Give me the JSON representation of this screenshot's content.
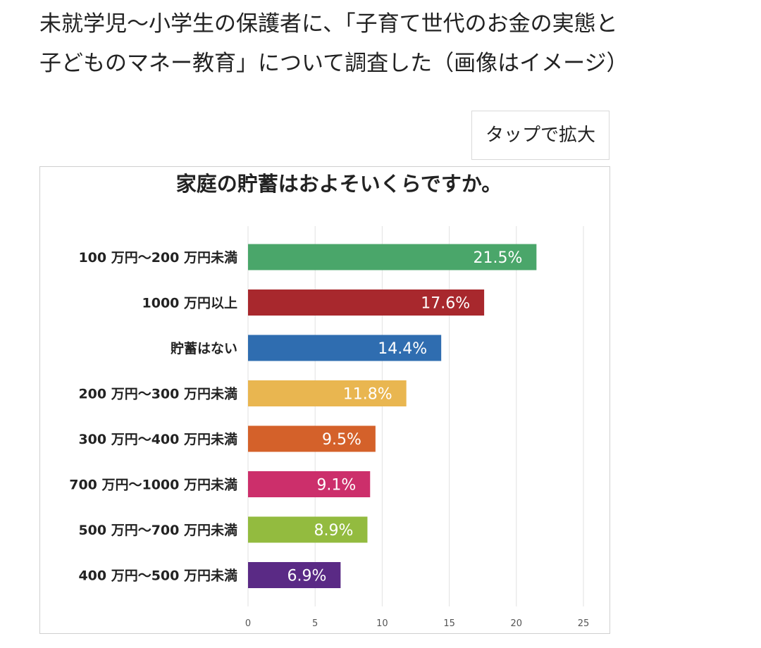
{
  "caption": {
    "line1": "未就学児～小学生の保護者に、「子育て世代のお金の実態と",
    "line2": "子どものマネー教育」について調査した（画像はイメージ）"
  },
  "tap_button": {
    "label": "タップで拡大"
  },
  "chart_data": {
    "type": "bar",
    "orientation": "horizontal",
    "title": "家庭の貯蓄はおよそいくらですか。",
    "xlabel": "",
    "ylabel": "",
    "xlim": [
      0,
      25
    ],
    "xticks": [
      0,
      5,
      10,
      15,
      20,
      25
    ],
    "grid": true,
    "legend": "none",
    "categories": [
      "100 万円～200 万円未満",
      "1000 万円以上",
      "貯蓄はない",
      "200 万円～300 万円未満",
      "300 万円～400 万円未満",
      "700 万円～1000 万円未満",
      "500 万円～700 万円未満",
      "400 万円～500 万円未満"
    ],
    "values": [
      21.5,
      17.6,
      14.4,
      11.8,
      9.5,
      9.1,
      8.9,
      6.9
    ],
    "value_labels": [
      "21.5%",
      "17.6%",
      "14.4%",
      "11.8%",
      "9.5%",
      "9.1%",
      "8.9%",
      "6.9%"
    ],
    "colors": [
      "#4aa66a",
      "#a8282d",
      "#2f6db0",
      "#e9b650",
      "#d4612a",
      "#cc2f6b",
      "#93bb3f",
      "#5a2a85"
    ]
  }
}
